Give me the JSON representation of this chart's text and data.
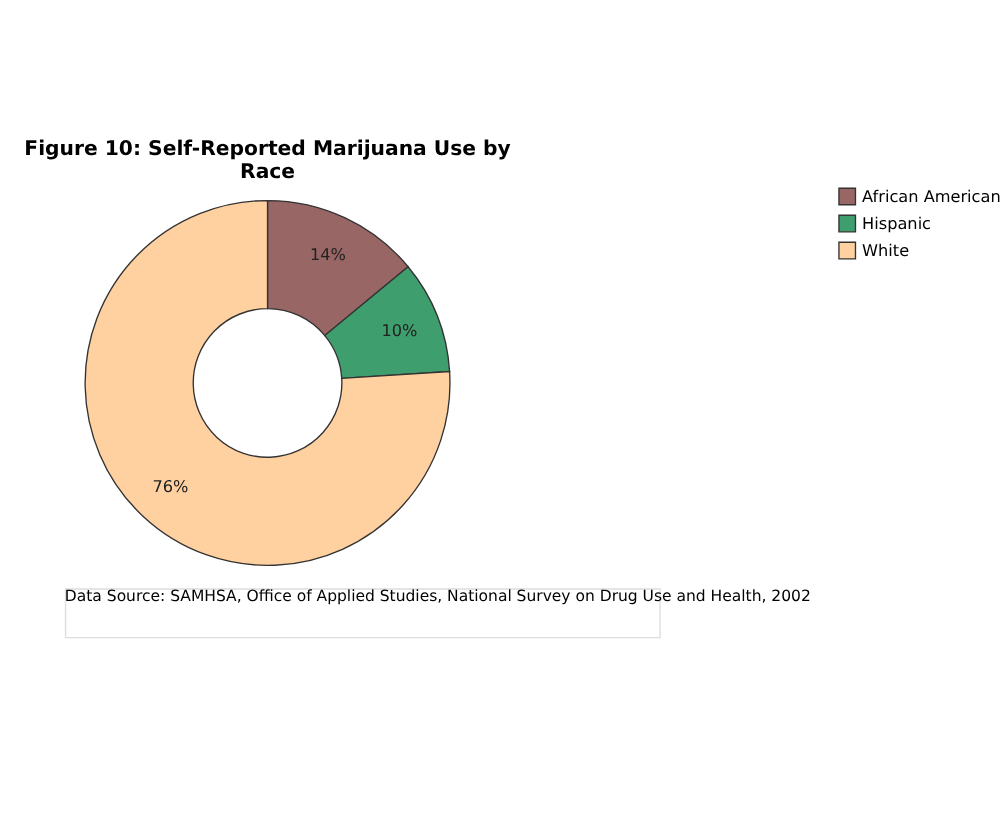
{
  "chart_data": {
    "type": "donut",
    "title": [
      "Figure 10:  Self-Reported Marijuana Use by",
      "Race"
    ],
    "categories": [
      "African American",
      "Hispanic",
      "White"
    ],
    "values": [
      14,
      10,
      76
    ],
    "value_labels": [
      "14%",
      "10%",
      "76%"
    ],
    "colors": [
      "#996666",
      "#3f9e6e",
      "#ffd1a0"
    ],
    "legend": "right",
    "annotations": [
      "Data Source: SAMHSA, Office of Applied Studies, National Survey on Drug Use and Health, 2002"
    ]
  }
}
